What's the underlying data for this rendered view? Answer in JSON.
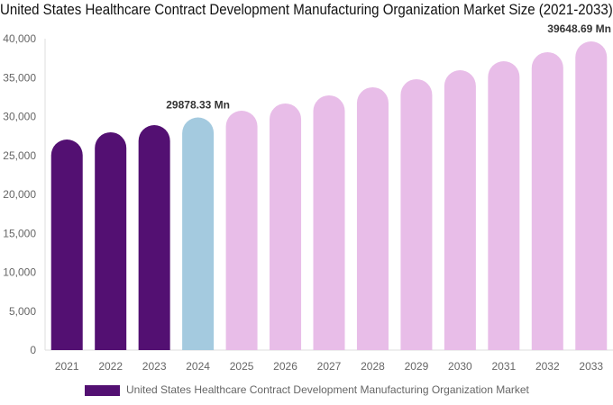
{
  "chart_data": {
    "type": "bar",
    "title": "United States Healthcare Contract Development Manufacturing Organization Market Size (2021-2033)",
    "categories": [
      "2021",
      "2022",
      "2023",
      "2024",
      "2025",
      "2026",
      "2027",
      "2028",
      "2029",
      "2030",
      "2031",
      "2032",
      "2033"
    ],
    "series": [
      {
        "name": "United States Healthcare Contract Development Manufacturing Organization Market",
        "values": [
          27050,
          27980,
          28900,
          29878.33,
          30750,
          31680,
          32720,
          33760,
          34800,
          35950,
          37110,
          38270,
          39648.69
        ]
      }
    ],
    "data_labels": [
      {
        "category": "2024",
        "text": "29878.33 Mn"
      },
      {
        "category": "2033",
        "text": "39648.69 Mn"
      }
    ],
    "ylim": [
      0,
      40000
    ],
    "yticks": [
      0,
      5000,
      10000,
      15000,
      20000,
      25000,
      30000,
      35000,
      40000
    ],
    "ytick_labels": [
      "0",
      "5,000",
      "10,000",
      "15,000",
      "20,000",
      "25,000",
      "30,000",
      "35,000",
      "40,000"
    ],
    "grid": false,
    "legend_position": "bottom",
    "colors": {
      "historical": "#531072",
      "base_year": "#a4cadf",
      "forecast": "#e8bde8",
      "legend_swatch": "#531072"
    }
  }
}
